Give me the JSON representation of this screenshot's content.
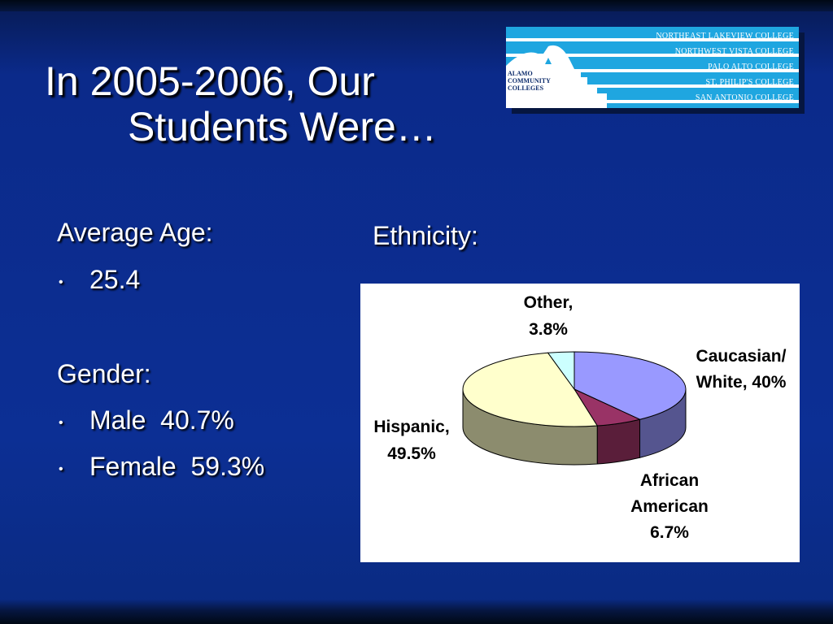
{
  "slide": {
    "title_line1": "In 2005-2006, Our",
    "title_line2": "Students Were…"
  },
  "logo": {
    "colleges": [
      "Northeast Lakeview College",
      "Northwest Vista College",
      "Palo Alto College",
      "St. Philip's College",
      "San Antonio College"
    ],
    "alamo": [
      "ALAMO",
      "COMMUNITY",
      "COLLEGES"
    ]
  },
  "age": {
    "heading": "Average Age:",
    "value": "25.4"
  },
  "gender": {
    "heading": "Gender:",
    "male": "Male  40.7%",
    "female": "Female  59.3%"
  },
  "ethnicity_heading": "Ethnicity:",
  "colors": {
    "background": "#0c2f94",
    "logo_blue": "#1fa6e0"
  },
  "chart_data": {
    "type": "pie",
    "three_d": true,
    "slices": [
      {
        "label": "Caucasian/ White",
        "value": 40,
        "display": [
          "Caucasian/",
          "White, 40%"
        ],
        "color": "#9999ff",
        "side": "#55558f"
      },
      {
        "label": "African American",
        "value": 6.7,
        "display": [
          "African",
          "American",
          "6.7%"
        ],
        "color": "#993366",
        "side": "#5a1e3a"
      },
      {
        "label": "Hispanic",
        "value": 49.5,
        "display": [
          "Hispanic,",
          "49.5%"
        ],
        "color": "#ffffcc",
        "side": "#8c8c6e"
      },
      {
        "label": "Other",
        "value": 3.8,
        "display": [
          "Other,",
          "3.8%"
        ],
        "color": "#ccffff",
        "side": "#7a9999"
      }
    ]
  }
}
